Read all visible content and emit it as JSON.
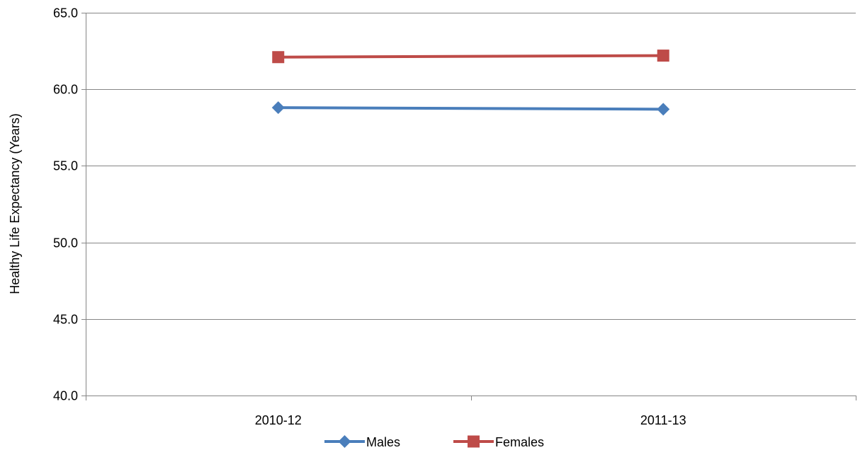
{
  "chart_data": {
    "type": "line",
    "title": "",
    "xlabel": "",
    "ylabel": "Healthy Life Expectancy (Years)",
    "categories": [
      "2010-12",
      "2011-13"
    ],
    "series": [
      {
        "name": "Males",
        "values": [
          58.8,
          58.7
        ],
        "color": "#4a7ebb",
        "marker": "diamond"
      },
      {
        "name": "Females",
        "values": [
          62.1,
          62.2
        ],
        "color": "#be4b48",
        "marker": "square"
      }
    ],
    "ylim": [
      40,
      65
    ],
    "yticks": [
      40,
      45,
      50,
      55,
      60,
      65
    ],
    "ytick_labels": [
      "40.0",
      "45.0",
      "50.0",
      "55.0",
      "60.0",
      "65.0"
    ],
    "grid": true,
    "gridline_color": "#868686",
    "legend_position": "bottom"
  }
}
